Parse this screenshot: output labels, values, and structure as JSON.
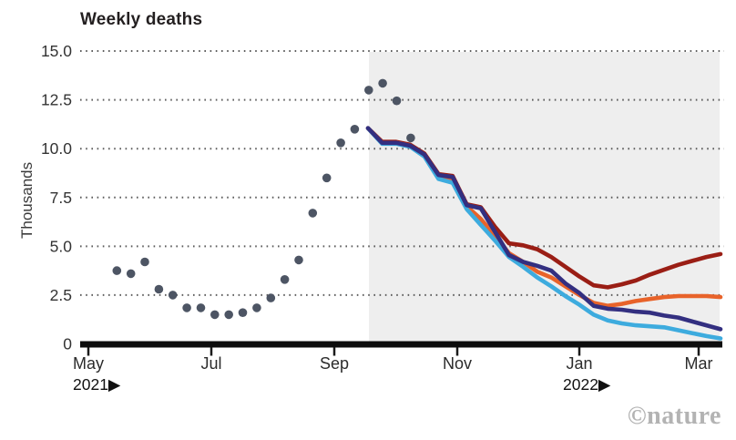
{
  "header": {
    "title": "Weekly deaths"
  },
  "watermark": {
    "text": "©nature"
  },
  "chart_data": {
    "type": "scatter+line",
    "title": "Weekly deaths",
    "ylabel": "Thousands",
    "ylim": [
      0,
      15
    ],
    "grid": "dotted horizontal gridlines",
    "legend": "none",
    "forecast_region": "shaded gray band from late Sep 2021 to mid Mar 2022",
    "y_ticks": [
      {
        "value": 15,
        "label": "15.0"
      },
      {
        "value": 12.5,
        "label": "12.5"
      },
      {
        "value": 10,
        "label": "10.0"
      },
      {
        "value": 7.5,
        "label": "7.5"
      },
      {
        "value": 5,
        "label": "5.0"
      },
      {
        "value": 2.5,
        "label": "2.5"
      },
      {
        "value": 0,
        "label": "0"
      }
    ],
    "x_ticks": [
      {
        "label": "May"
      },
      {
        "label": "Jul"
      },
      {
        "label": "Sep"
      },
      {
        "label": "Nov"
      },
      {
        "label": "Jan"
      },
      {
        "label": "Mar"
      }
    ],
    "year_markers": [
      {
        "label": "2021▶",
        "under_tick": "May"
      },
      {
        "label": "2022▶",
        "under_tick": "Jan"
      }
    ],
    "observed": {
      "name": "observed-weekly-deaths",
      "style": "scatter",
      "color": "#4d5564",
      "unit": "thousands",
      "cadence": "weekly",
      "values": [
        3.75,
        3.6,
        4.2,
        2.8,
        2.5,
        1.85,
        1.85,
        1.5,
        1.5,
        1.6,
        1.85,
        2.35,
        3.3,
        4.3,
        6.7,
        8.5,
        10.3,
        11.0,
        13.0,
        13.35,
        12.45,
        10.55
      ]
    },
    "series": [
      {
        "name": "forecast-dark-red",
        "color": "#9a1e15",
        "values": [
          11.05,
          10.35,
          10.35,
          10.2,
          9.75,
          8.7,
          8.6,
          7.15,
          7.0,
          6.0,
          5.15,
          5.05,
          4.85,
          4.45,
          3.95,
          3.45,
          3.0,
          2.9,
          3.05,
          3.25,
          3.55,
          3.8,
          4.05,
          4.25,
          4.45,
          4.6
        ]
      },
      {
        "name": "forecast-orange",
        "color": "#e8632a",
        "values": [
          11.05,
          10.3,
          10.3,
          10.15,
          9.65,
          8.55,
          8.4,
          7.05,
          6.4,
          5.55,
          4.65,
          4.2,
          3.7,
          3.4,
          2.95,
          2.5,
          2.1,
          1.95,
          2.05,
          2.2,
          2.3,
          2.4,
          2.45,
          2.45,
          2.45,
          2.4
        ]
      },
      {
        "name": "forecast-light-blue",
        "color": "#3dabde",
        "values": [
          11.05,
          10.25,
          10.25,
          10.1,
          9.6,
          8.45,
          8.25,
          6.9,
          6.1,
          5.3,
          4.45,
          3.95,
          3.4,
          2.95,
          2.45,
          2.0,
          1.5,
          1.2,
          1.05,
          0.95,
          0.9,
          0.85,
          0.7,
          0.55,
          0.4,
          0.28
        ]
      },
      {
        "name": "forecast-navy",
        "color": "#332f80",
        "values": [
          11.05,
          10.3,
          10.3,
          10.15,
          9.7,
          8.65,
          8.55,
          7.1,
          6.95,
          5.75,
          4.55,
          4.2,
          4.0,
          3.75,
          3.1,
          2.6,
          1.95,
          1.8,
          1.75,
          1.65,
          1.6,
          1.45,
          1.35,
          1.15,
          0.95,
          0.75
        ]
      }
    ],
    "colors": {
      "shading": "#eeeeee",
      "gridline": "#4c4c4c",
      "axis": "#0d0d0d",
      "tick_label": "#2b2b2b",
      "scatter_dot": "#4d5564"
    }
  }
}
